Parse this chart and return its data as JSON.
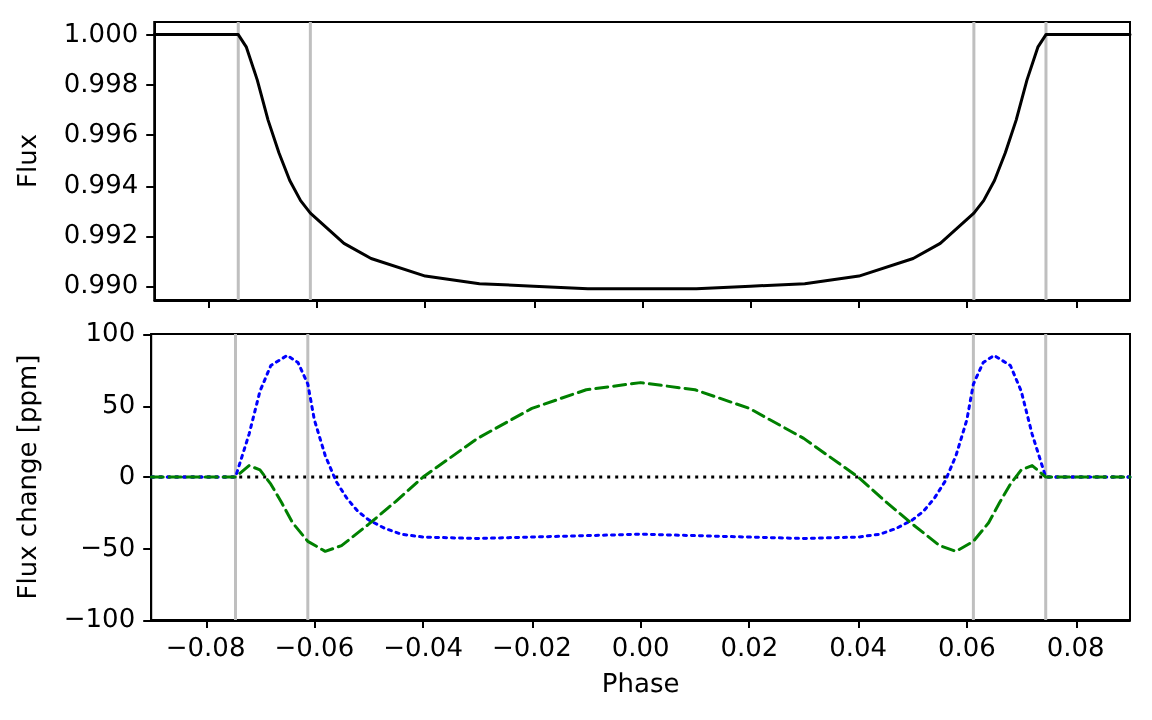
{
  "chart_data": [
    {
      "type": "line",
      "ylabel": "Flux",
      "tick_labels": "y",
      "marker": "none",
      "xlim": [
        -0.09,
        0.09
      ],
      "xticks": [
        {
          "value": -0.08,
          "label": null
        },
        {
          "value": -0.06,
          "label": null
        },
        {
          "value": -0.04,
          "label": null
        },
        {
          "value": -0.02,
          "label": null
        },
        {
          "value": 0,
          "label": null
        },
        {
          "value": 0.02,
          "label": null
        },
        {
          "value": 0.04,
          "label": null
        },
        {
          "value": 0.06,
          "label": null
        },
        {
          "value": 0.08,
          "label": null
        }
      ],
      "ylim": [
        0.98945,
        1.0005
      ],
      "yticks": [
        {
          "value": 0.99,
          "label": "0.990"
        },
        {
          "value": 0.992,
          "label": "0.992"
        },
        {
          "value": 0.994,
          "label": "0.994"
        },
        {
          "value": 0.996,
          "label": "0.996"
        },
        {
          "value": 0.998,
          "label": "0.998"
        },
        {
          "value": 1,
          "label": "1.000"
        }
      ],
      "series": [
        {
          "color": "#000000",
          "line_style": "solid",
          "x": [
            -0.09,
            -0.0745,
            -0.073,
            -0.071,
            -0.069,
            -0.067,
            -0.065,
            -0.063,
            -0.0612,
            -0.055,
            -0.05,
            -0.04,
            -0.03,
            -0.02,
            -0.01,
            0,
            0.01,
            0.02,
            0.03,
            0.04,
            0.05,
            0.055,
            0.0612,
            0.063,
            0.065,
            0.067,
            0.069,
            0.071,
            0.073,
            0.0745,
            0.09
          ],
          "values": [
            1.0,
            1.0,
            0.9995,
            0.9982,
            0.9966,
            0.9953,
            0.9942,
            0.9934,
            0.9929,
            0.9917,
            0.9911,
            0.9904,
            0.9901,
            0.99,
            0.9899,
            0.9899,
            0.9899,
            0.99,
            0.9901,
            0.9904,
            0.9911,
            0.9917,
            0.9929,
            0.9934,
            0.9942,
            0.9953,
            0.9966,
            0.9982,
            0.9995,
            1.0,
            1.0
          ]
        }
      ],
      "ref_lines": [
        {
          "axis": "x",
          "value": -0.0745,
          "color": "#bfbfbf",
          "line_style": "solid"
        },
        {
          "axis": "x",
          "value": -0.0612,
          "color": "#bfbfbf",
          "line_style": "solid"
        },
        {
          "axis": "x",
          "value": 0.0612,
          "color": "#bfbfbf",
          "line_style": "solid"
        },
        {
          "axis": "x",
          "value": 0.0745,
          "color": "#bfbfbf",
          "line_style": "solid"
        }
      ]
    },
    {
      "type": "line",
      "xlabel": "Phase",
      "ylabel": "Flux change [ppm]",
      "marker": "none",
      "xlim": [
        -0.09,
        0.09
      ],
      "xticks": [
        {
          "value": -0.08,
          "label": "−0.08"
        },
        {
          "value": -0.06,
          "label": "−0.06"
        },
        {
          "value": -0.04,
          "label": "−0.04"
        },
        {
          "value": -0.02,
          "label": "−0.02"
        },
        {
          "value": 0,
          "label": "0.00"
        },
        {
          "value": 0.02,
          "label": "0.02"
        },
        {
          "value": 0.04,
          "label": "0.04"
        },
        {
          "value": 0.06,
          "label": "0.06"
        },
        {
          "value": 0.08,
          "label": "0.08"
        }
      ],
      "ylim": [
        -100,
        100
      ],
      "yticks": [
        {
          "value": -100,
          "label": "−100"
        },
        {
          "value": -50,
          "label": "−50"
        },
        0,
        50,
        100
      ],
      "series": [
        {
          "color": "#0000ff",
          "line_style": "dotted",
          "x": [
            -0.09,
            -0.0745,
            -0.072,
            -0.07,
            -0.068,
            -0.065,
            -0.063,
            -0.0612,
            -0.06,
            -0.058,
            -0.056,
            -0.054,
            -0.052,
            -0.05,
            -0.047,
            -0.044,
            -0.04,
            -0.03,
            -0.02,
            -0.01,
            0,
            0.01,
            0.02,
            0.03,
            0.04,
            0.044,
            0.047,
            0.05,
            0.052,
            0.054,
            0.056,
            0.058,
            0.06,
            0.0612,
            0.063,
            0.065,
            0.068,
            0.07,
            0.072,
            0.0745,
            0.09
          ],
          "values": [
            0,
            0,
            30,
            60,
            78,
            85,
            80,
            65,
            40,
            15,
            -3,
            -15,
            -24,
            -30,
            -36,
            -40,
            -42,
            -43,
            -42,
            -41,
            -40,
            -41,
            -42,
            -43,
            -42,
            -40,
            -36,
            -30,
            -24,
            -15,
            -3,
            15,
            40,
            65,
            80,
            85,
            78,
            60,
            30,
            0,
            0
          ]
        },
        {
          "color": "#008000",
          "line_style": "dashed",
          "x": [
            -0.09,
            -0.0745,
            -0.072,
            -0.07,
            -0.068,
            -0.066,
            -0.064,
            -0.0612,
            -0.058,
            -0.055,
            -0.05,
            -0.045,
            -0.04,
            -0.03,
            -0.02,
            -0.01,
            0,
            0.01,
            0.02,
            0.03,
            0.04,
            0.045,
            0.05,
            0.055,
            0.058,
            0.0612,
            0.064,
            0.066,
            0.068,
            0.07,
            0.072,
            0.0745,
            0.09
          ],
          "values": [
            0,
            0,
            8,
            5,
            -5,
            -18,
            -32,
            -45,
            -52,
            -48,
            -33,
            -17,
            0,
            27,
            48,
            61,
            66,
            61,
            48,
            27,
            0,
            -17,
            -33,
            -48,
            -52,
            -45,
            -32,
            -18,
            -5,
            5,
            8,
            0,
            0
          ]
        }
      ],
      "ref_lines": [
        {
          "axis": "x",
          "value": -0.0745,
          "color": "#bfbfbf",
          "line_style": "solid"
        },
        {
          "axis": "x",
          "value": -0.0612,
          "color": "#bfbfbf",
          "line_style": "solid"
        },
        {
          "axis": "x",
          "value": 0.0612,
          "color": "#bfbfbf",
          "line_style": "solid"
        },
        {
          "axis": "x",
          "value": 0.0745,
          "color": "#bfbfbf",
          "line_style": "solid"
        },
        {
          "axis": "y",
          "value": 0,
          "color": "#000000",
          "line_style": "dotted"
        }
      ]
    }
  ]
}
